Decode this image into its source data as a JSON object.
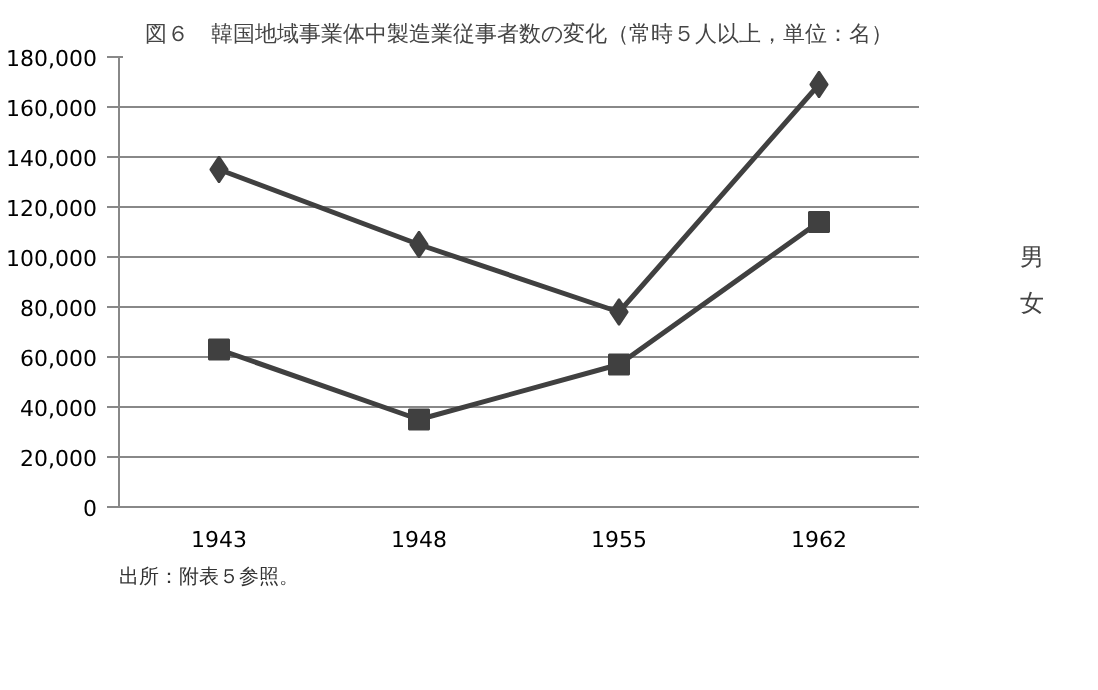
{
  "chart_data": {
    "type": "line",
    "title": "図６　韓国地域事業体中製造業従事者数の変化（常時５人以上，単位：名）",
    "categories": [
      "1943",
      "1948",
      "1955",
      "1962"
    ],
    "series": [
      {
        "name": "男",
        "color": "#404040",
        "marker": "diamond",
        "values": [
          135000,
          105000,
          78000,
          169000
        ]
      },
      {
        "name": "女",
        "color": "#404040",
        "marker": "square",
        "values": [
          63000,
          35000,
          57000,
          114000
        ]
      }
    ],
    "ylim": [
      0,
      180000
    ],
    "yticks": [
      {
        "value": 0,
        "label": "0"
      },
      {
        "value": 20000,
        "label": "20,000"
      },
      {
        "value": 40000,
        "label": "40,000"
      },
      {
        "value": 60000,
        "label": "60,000"
      },
      {
        "value": 80000,
        "label": "80,000"
      },
      {
        "value": 100000,
        "label": "100,000"
      },
      {
        "value": 120000,
        "label": "120,000"
      },
      {
        "value": 140000,
        "label": "140,000"
      },
      {
        "value": 160000,
        "label": "160,000"
      },
      {
        "value": 180000,
        "label": "180,000"
      }
    ],
    "grid": "y",
    "legend": "right",
    "line_style": "solid",
    "annotations": [
      "出所：附表５参照。"
    ]
  }
}
